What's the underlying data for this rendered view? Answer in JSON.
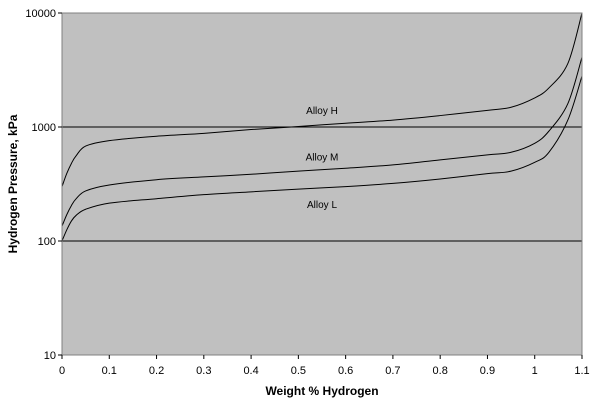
{
  "chart_data": {
    "type": "line",
    "title": "",
    "xlabel": "Weight % Hydrogen",
    "ylabel": "Hydrogen Pressure, kPa",
    "x_ticks": [
      "0",
      "0.1",
      "0.2",
      "0.3",
      "0.4",
      "0.5",
      "0.6",
      "0.7",
      "0.8",
      "0.9",
      "1",
      "1.1"
    ],
    "y_ticks": [
      "10",
      "100",
      "1000",
      "10000"
    ],
    "xlim": [
      0,
      1.1
    ],
    "ylim": [
      10,
      10000
    ],
    "y_scale": "log",
    "grid": "horizontal major gridlines at decades",
    "legend": "none (inline curve labels)",
    "colors": {
      "plot_background": "#c0c0c0",
      "line": "#000000"
    },
    "series": [
      {
        "name": "Alloy H",
        "x": [
          0,
          0.01,
          0.02,
          0.03,
          0.05,
          0.1,
          0.2,
          0.3,
          0.4,
          0.5,
          0.6,
          0.7,
          0.8,
          0.9,
          0.95,
          1.0,
          1.03,
          1.07,
          1.1
        ],
        "y": [
          300,
          390,
          480,
          560,
          680,
          760,
          830,
          880,
          950,
          1010,
          1080,
          1150,
          1260,
          1400,
          1490,
          1800,
          2200,
          3600,
          10000
        ]
      },
      {
        "name": "Alloy M",
        "x": [
          0,
          0.01,
          0.02,
          0.03,
          0.05,
          0.1,
          0.2,
          0.3,
          0.4,
          0.5,
          0.6,
          0.7,
          0.8,
          0.9,
          0.95,
          1.0,
          1.03,
          1.07,
          1.1
        ],
        "y": [
          135,
          170,
          205,
          235,
          275,
          310,
          345,
          365,
          385,
          410,
          435,
          465,
          515,
          570,
          600,
          720,
          920,
          1600,
          4100
        ]
      },
      {
        "name": "Alloy L",
        "x": [
          0,
          0.01,
          0.02,
          0.03,
          0.05,
          0.1,
          0.2,
          0.3,
          0.4,
          0.5,
          0.6,
          0.7,
          0.8,
          0.9,
          0.95,
          1.0,
          1.03,
          1.07,
          1.1
        ],
        "y": [
          100,
          125,
          150,
          168,
          190,
          215,
          235,
          255,
          270,
          285,
          300,
          320,
          350,
          390,
          410,
          490,
          600,
          1150,
          2800
        ]
      }
    ],
    "annotations": [
      {
        "text": "Alloy H",
        "x": 0.55,
        "y": 1300
      },
      {
        "text": "Alloy M",
        "x": 0.55,
        "y": 510
      },
      {
        "text": "Alloy L",
        "x": 0.55,
        "y": 195
      }
    ]
  }
}
